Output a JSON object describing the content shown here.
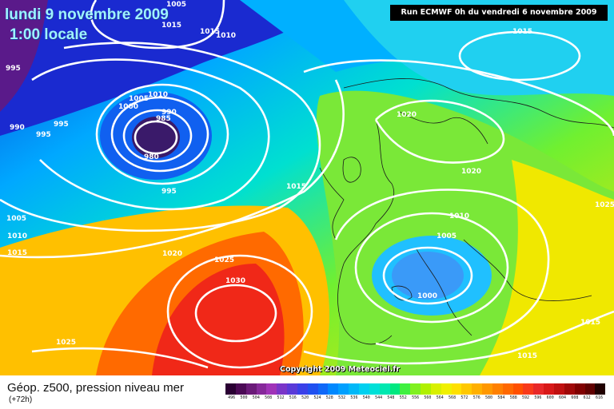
{
  "header": {
    "date": "lundi 9 novembre 2009",
    "local_time": "1:00 locale",
    "run_info": "Run ECMWF 0h du vendredi 6 novembre 2009"
  },
  "footer": {
    "field": "Géop. z500, pression niveau mer",
    "lead_time": "(+72h)",
    "copyright": "Copyright 2009 Meteociel.fr"
  },
  "isobar_labels": [
    {
      "text": "1005"
    },
    {
      "text": "1015"
    },
    {
      "text": "1015"
    },
    {
      "text": "1010"
    },
    {
      "text": "995"
    },
    {
      "text": "990"
    },
    {
      "text": "995"
    },
    {
      "text": "995"
    },
    {
      "text": "1010"
    },
    {
      "text": "1005"
    },
    {
      "text": "1000"
    },
    {
      "text": "990"
    },
    {
      "text": "985"
    },
    {
      "text": "980"
    },
    {
      "text": "995"
    },
    {
      "text": "1015"
    },
    {
      "text": "1005"
    },
    {
      "text": "1010"
    },
    {
      "text": "1015"
    },
    {
      "text": "1020"
    },
    {
      "text": "1025"
    },
    {
      "text": "1030"
    },
    {
      "text": "1025"
    },
    {
      "text": "1015"
    },
    {
      "text": "1020"
    },
    {
      "text": "1020"
    },
    {
      "text": "1010"
    },
    {
      "text": "1005"
    },
    {
      "text": "1000"
    },
    {
      "text": "1025"
    },
    {
      "text": "1015"
    },
    {
      "text": "1015"
    }
  ],
  "legend": {
    "colors": [
      "#2a0033",
      "#4b0a55",
      "#6a1a78",
      "#86289a",
      "#a033b8",
      "#7a35c8",
      "#5a3ad8",
      "#3a40e8",
      "#2050f0",
      "#1068f8",
      "#0088ff",
      "#00a0ff",
      "#00b8f8",
      "#00d0f0",
      "#00e0d8",
      "#00e8b0",
      "#00e880",
      "#40f040",
      "#80f020",
      "#b0f000",
      "#d8f000",
      "#f0f000",
      "#ffe000",
      "#ffc800",
      "#ffb000",
      "#ff9800",
      "#ff8000",
      "#ff6800",
      "#ff5000",
      "#f83a1a",
      "#e82828",
      "#d81818",
      "#c01010",
      "#a00808",
      "#800000",
      "#600000",
      "#200000"
    ],
    "values": [
      "496",
      "500",
      "504",
      "508",
      "512",
      "516",
      "520",
      "524",
      "528",
      "532",
      "536",
      "540",
      "544",
      "548",
      "552",
      "556",
      "560",
      "564",
      "568",
      "572",
      "576",
      "580",
      "584",
      "588",
      "592",
      "596",
      "600",
      "604",
      "608",
      "612",
      "616"
    ]
  }
}
